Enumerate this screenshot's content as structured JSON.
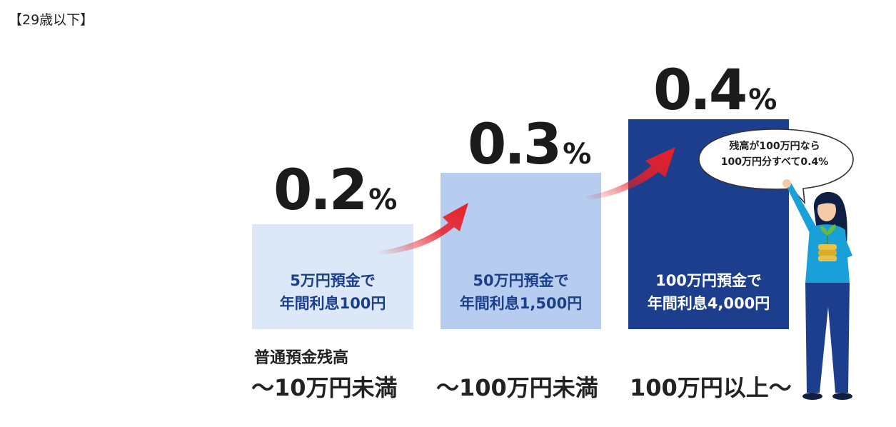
{
  "heading": "【29歳以下】",
  "tiers": [
    {
      "rate": "0.2",
      "unit": "%",
      "desc_line1": "5万円預金で",
      "desc_line2": "年間利息100円",
      "range": "〜10万円未満",
      "color": "#dce8f8"
    },
    {
      "rate": "0.3",
      "unit": "%",
      "desc_line1": "50万円預金で",
      "desc_line2": "年間利息1,500円",
      "range": "〜100万円未満",
      "color": "#b7cdf0"
    },
    {
      "rate": "0.4",
      "unit": "%",
      "desc_line1": "100万円預金で",
      "desc_line2": "年間利息4,000円",
      "range": "100万円以上〜",
      "color": "#1d3e8c"
    }
  ],
  "balance_label": "普通預金残高",
  "bubble": {
    "line1": "残高が100万円なら",
    "line2": "100万円分すべて0.4%"
  },
  "icons": {
    "arrows": "red-curved-arrow-icon",
    "person": "woman-holding-coins-illustration"
  },
  "colors": {
    "arrow": "#e8202a",
    "text_dark": "#1b1b1b",
    "bar_text_blue": "#1c3f8a"
  }
}
